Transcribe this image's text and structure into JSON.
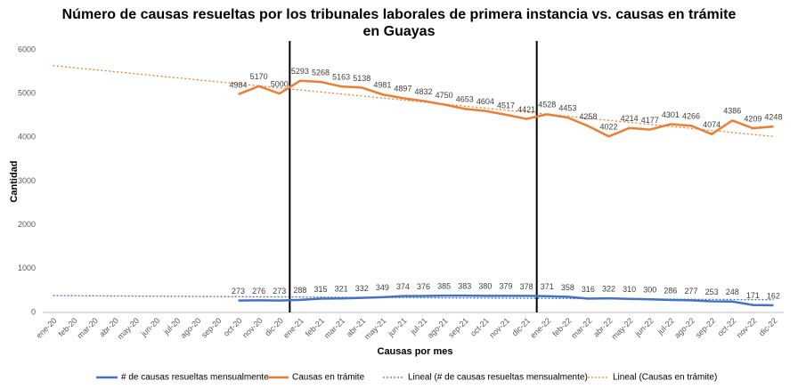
{
  "chart_data": {
    "type": "line",
    "title": "Número de causas resueltas por los tribunales laborales de primera instancia vs. causas en trámite",
    "subtitle": "en Guayas",
    "y_label": "Cantidad",
    "x_label": "Causas por mes",
    "categories": [
      "ene-20",
      "feb-20",
      "mar-20",
      "abr-20",
      "may-20",
      "jun-20",
      "jul-20",
      "ago-20",
      "sep-20",
      "oct-20",
      "nov-20",
      "dic-20",
      "ene-21",
      "feb-21",
      "mar-21",
      "abr-21",
      "may-21",
      "jun-21",
      "jul-21",
      "ago-21",
      "sep-21",
      "oct-21",
      "nov-21",
      "dic-21",
      "ene-22",
      "feb-22",
      "mar-22",
      "abr-22",
      "may-22",
      "jun-22",
      "jul-22",
      "ago-22",
      "sep-22",
      "oct-22",
      "nov-22",
      "dic-22"
    ],
    "series": [
      {
        "name": "# de causas resueltas mensualmente",
        "color": "#4472c4",
        "values": [
          null,
          null,
          null,
          null,
          null,
          null,
          null,
          null,
          null,
          273,
          276,
          273,
          288,
          315,
          321,
          332,
          349,
          374,
          376,
          385,
          383,
          380,
          379,
          378,
          371,
          358,
          316,
          322,
          310,
          300,
          286,
          277,
          253,
          248,
          171,
          162
        ]
      },
      {
        "name": "Causas en trámite",
        "color": "#ed7d31",
        "values": [
          null,
          null,
          null,
          null,
          null,
          null,
          null,
          null,
          null,
          4984,
          5170,
          5000,
          5293,
          5268,
          5163,
          5138,
          4981,
          4897,
          4832,
          4750,
          4653,
          4604,
          4517,
          4421,
          4528,
          4453,
          4258,
          4022,
          4214,
          4177,
          4301,
          4266,
          4074,
          4386,
          4209,
          4248
        ]
      }
    ],
    "trendlines": [
      {
        "name": "Lineal (# de causas resueltas mensualmente)",
        "color": "#4472c4",
        "ends": [
          385,
          290
        ]
      },
      {
        "name": "Lineal (Causas en trámite)",
        "color": "#ed7d31",
        "ends": [
          5640,
          4020
        ]
      }
    ],
    "ylim": [
      0,
      6000
    ],
    "yticks": [
      0,
      1000,
      2000,
      3000,
      4000,
      5000,
      6000
    ],
    "grid": false
  }
}
